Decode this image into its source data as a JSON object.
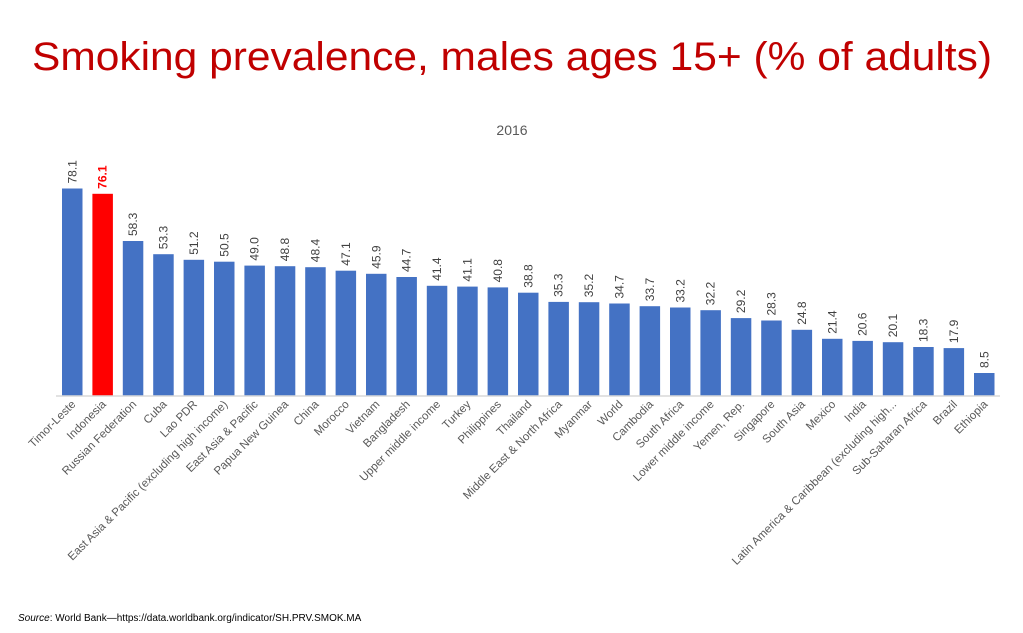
{
  "chart_data": {
    "type": "bar",
    "title": "Smoking prevalence, males ages 15+ (% of adults)",
    "subtitle": "2016",
    "xlabel": "",
    "ylabel": "",
    "ylim": [
      0,
      78.1
    ],
    "grid": false,
    "legend": "none",
    "bar_color": "#4472C4",
    "highlight_color": "#FF0000",
    "highlight_category": "Indonesia",
    "categories": [
      "Timor-Leste",
      "Indonesia",
      "Russian Federation",
      "Cuba",
      "Lao PDR",
      "East Asia & Pacific (excluding high income)",
      "East Asia & Pacific",
      "Papua New Guinea",
      "China",
      "Morocco",
      "Vietnam",
      "Bangladesh",
      "Upper middle income",
      "Turkey",
      "Philippines",
      "Thailand",
      "Middle East & North Africa",
      "Myanmar",
      "World",
      "Cambodia",
      "South Africa",
      "Lower middle income",
      "Yemen, Rep.",
      "Singapore",
      "South Asia",
      "Mexico",
      "India",
      "Latin America & Caribbean (excluding high...",
      "Sub-Saharan Africa",
      "Brazil",
      "Ethiopia"
    ],
    "values": [
      78.1,
      76.1,
      58.3,
      53.3,
      51.2,
      50.5,
      49.0,
      48.8,
      48.4,
      47.1,
      45.9,
      44.7,
      41.4,
      41.1,
      40.8,
      38.8,
      35.3,
      35.2,
      34.7,
      33.7,
      33.2,
      32.2,
      29.2,
      28.3,
      24.8,
      21.4,
      20.6,
      20.1,
      18.3,
      17.9,
      8.5
    ],
    "value_labels": [
      "78.1",
      "76.1",
      "58.3",
      "53.3",
      "51.2",
      "50.5",
      "49.0",
      "48.8",
      "48.4",
      "47.1",
      "45.9",
      "44.7",
      "41.4",
      "41.1",
      "40.8",
      "38.8",
      "35.3",
      "35.2",
      "34.7",
      "33.7",
      "33.2",
      "32.2",
      "29.2",
      "28.3",
      "24.8",
      "21.4",
      "20.6",
      "20.1",
      "18.3",
      "17.9",
      "8.5"
    ]
  },
  "source": {
    "label": "Source",
    "text": ": World Bank—https://data.worldbank.org/indicator/SH.PRV.SMOK.MA"
  }
}
